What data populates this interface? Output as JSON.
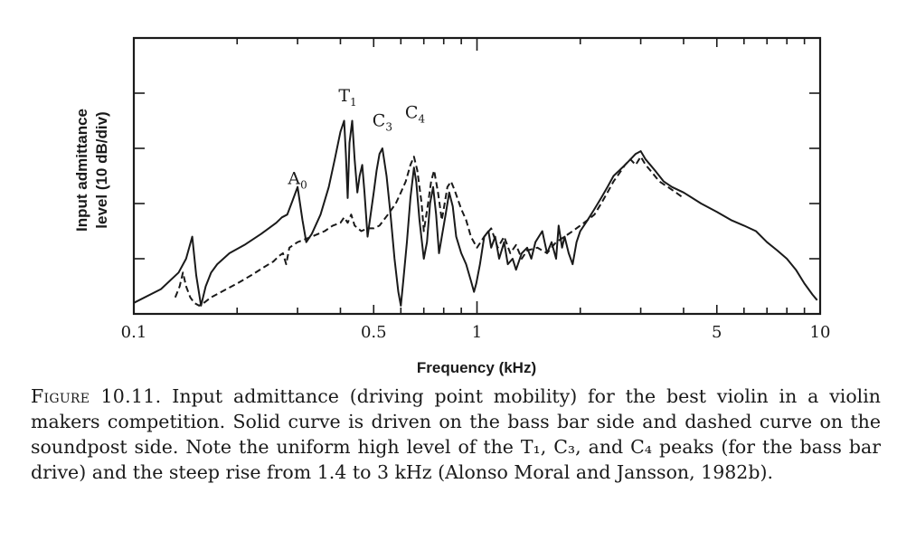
{
  "figure": {
    "caption_lead": "Figure 10.11.",
    "caption_text": " Input admittance (driving point mobility) for the best violin in a violin makers competition. Solid curve is driven on the bass bar side and dashed curve on the soundpost side. Note the uniform high level of the T₁, C₃, and C₄ peaks (for the bass bar drive) and the steep rise from 1.4 to 3 kHz (Alonso Moral and Jansson, 1982b)."
  },
  "chart_data": {
    "type": "line",
    "title": "",
    "xlabel": "Frequency (kHz)",
    "ylabel": "Input admittance level (10 dB/div)",
    "ylabel_lines": [
      "Input admittance",
      "level (10 dB/div)"
    ],
    "xscale": "log",
    "xlim": [
      0.1,
      10
    ],
    "ylim": [
      0,
      50
    ],
    "y_unit": "dB (relative)",
    "x_tick_labels": [
      {
        "value": 0.1,
        "label": "0.1"
      },
      {
        "value": 0.5,
        "label": "0.5"
      },
      {
        "value": 1,
        "label": "1"
      },
      {
        "value": 5,
        "label": "5"
      },
      {
        "value": 10,
        "label": "10"
      }
    ],
    "y_major_ticks": [
      10,
      20,
      30,
      40
    ],
    "grid": false,
    "legend": "none",
    "annotations": [
      {
        "text": "A",
        "sub": "0",
        "x": 0.3,
        "y": 23.5
      },
      {
        "text": "T",
        "sub": "1",
        "x": 0.42,
        "y": 38.5
      },
      {
        "text": "C",
        "sub": "3",
        "x": 0.53,
        "y": 34
      },
      {
        "text": "C",
        "sub": "4",
        "x": 0.66,
        "y": 35.5
      }
    ],
    "series": [
      {
        "name": "Solid curve (bass bar side)",
        "style": "solid",
        "points": [
          [
            0.1,
            2
          ],
          [
            0.12,
            4.5
          ],
          [
            0.135,
            7.5
          ],
          [
            0.142,
            10
          ],
          [
            0.148,
            14
          ],
          [
            0.152,
            7
          ],
          [
            0.157,
            1.5
          ],
          [
            0.162,
            5
          ],
          [
            0.168,
            7.5
          ],
          [
            0.175,
            9
          ],
          [
            0.19,
            11
          ],
          [
            0.21,
            12.5
          ],
          [
            0.235,
            14.5
          ],
          [
            0.26,
            16.5
          ],
          [
            0.27,
            17.5
          ],
          [
            0.28,
            18
          ],
          [
            0.29,
            20.5
          ],
          [
            0.3,
            23
          ],
          [
            0.31,
            17
          ],
          [
            0.318,
            13
          ],
          [
            0.33,
            14.5
          ],
          [
            0.35,
            18
          ],
          [
            0.37,
            23
          ],
          [
            0.385,
            28
          ],
          [
            0.4,
            33
          ],
          [
            0.41,
            35
          ],
          [
            0.415,
            29
          ],
          [
            0.42,
            21
          ],
          [
            0.425,
            31
          ],
          [
            0.433,
            35
          ],
          [
            0.44,
            28
          ],
          [
            0.448,
            22
          ],
          [
            0.455,
            25
          ],
          [
            0.463,
            27
          ],
          [
            0.47,
            22
          ],
          [
            0.48,
            14
          ],
          [
            0.49,
            18
          ],
          [
            0.5,
            22
          ],
          [
            0.51,
            26
          ],
          [
            0.52,
            29
          ],
          [
            0.53,
            30
          ],
          [
            0.545,
            25
          ],
          [
            0.56,
            18
          ],
          [
            0.575,
            10
          ],
          [
            0.59,
            4
          ],
          [
            0.6,
            1.5
          ],
          [
            0.61,
            6
          ],
          [
            0.625,
            13
          ],
          [
            0.64,
            21
          ],
          [
            0.655,
            26.5
          ],
          [
            0.665,
            24
          ],
          [
            0.68,
            17
          ],
          [
            0.7,
            10
          ],
          [
            0.715,
            13
          ],
          [
            0.73,
            20
          ],
          [
            0.745,
            23
          ],
          [
            0.76,
            18
          ],
          [
            0.775,
            11
          ],
          [
            0.79,
            14
          ],
          [
            0.81,
            18
          ],
          [
            0.83,
            22
          ],
          [
            0.85,
            19.5
          ],
          [
            0.87,
            14
          ],
          [
            0.9,
            11
          ],
          [
            0.93,
            9
          ],
          [
            0.96,
            6
          ],
          [
            0.98,
            4
          ],
          [
            0.995,
            5.5
          ],
          [
            1.02,
            9
          ],
          [
            1.05,
            14
          ],
          [
            1.08,
            15
          ],
          [
            1.1,
            12
          ],
          [
            1.13,
            14
          ],
          [
            1.16,
            10
          ],
          [
            1.2,
            13
          ],
          [
            1.23,
            9
          ],
          [
            1.27,
            10
          ],
          [
            1.3,
            8
          ],
          [
            1.35,
            11
          ],
          [
            1.4,
            12
          ],
          [
            1.44,
            10
          ],
          [
            1.48,
            13
          ],
          [
            1.55,
            15
          ],
          [
            1.6,
            11
          ],
          [
            1.65,
            13
          ],
          [
            1.7,
            10
          ],
          [
            1.73,
            16
          ],
          [
            1.77,
            12
          ],
          [
            1.8,
            14
          ],
          [
            1.85,
            11
          ],
          [
            1.9,
            9
          ],
          [
            1.95,
            13
          ],
          [
            2.0,
            15
          ],
          [
            2.1,
            17
          ],
          [
            2.2,
            19
          ],
          [
            2.3,
            21
          ],
          [
            2.4,
            23
          ],
          [
            2.5,
            25
          ],
          [
            2.6,
            26
          ],
          [
            2.7,
            27
          ],
          [
            2.8,
            28
          ],
          [
            2.9,
            29
          ],
          [
            3.0,
            29.5
          ],
          [
            3.1,
            28
          ],
          [
            3.2,
            27
          ],
          [
            3.3,
            26
          ],
          [
            3.5,
            24
          ],
          [
            3.7,
            23
          ],
          [
            4.0,
            22
          ],
          [
            4.5,
            20
          ],
          [
            5.0,
            18.5
          ],
          [
            5.5,
            17
          ],
          [
            6.0,
            16
          ],
          [
            6.5,
            15
          ],
          [
            7.0,
            13
          ],
          [
            7.5,
            11.5
          ],
          [
            8.0,
            10
          ],
          [
            8.5,
            8
          ],
          [
            9.0,
            5.5
          ],
          [
            9.5,
            3.5
          ],
          [
            9.8,
            2.5
          ]
        ]
      },
      {
        "name": "Dashed curve (soundpost side)",
        "style": "dashed",
        "points": [
          [
            0.132,
            3
          ],
          [
            0.136,
            5
          ],
          [
            0.139,
            7.5
          ],
          [
            0.142,
            5
          ],
          [
            0.146,
            3
          ],
          [
            0.15,
            2
          ],
          [
            0.155,
            1.5
          ],
          [
            0.16,
            2
          ],
          [
            0.168,
            3
          ],
          [
            0.18,
            4
          ],
          [
            0.2,
            5.5
          ],
          [
            0.22,
            7
          ],
          [
            0.24,
            8.5
          ],
          [
            0.255,
            9.5
          ],
          [
            0.265,
            10.5
          ],
          [
            0.272,
            11
          ],
          [
            0.278,
            9
          ],
          [
            0.284,
            12
          ],
          [
            0.3,
            13
          ],
          [
            0.33,
            14
          ],
          [
            0.36,
            15
          ],
          [
            0.38,
            16
          ],
          [
            0.4,
            16.5
          ],
          [
            0.41,
            17.5
          ],
          [
            0.42,
            16.5
          ],
          [
            0.43,
            18
          ],
          [
            0.44,
            16
          ],
          [
            0.46,
            15
          ],
          [
            0.48,
            15.5
          ],
          [
            0.5,
            15.5
          ],
          [
            0.52,
            16
          ],
          [
            0.55,
            18
          ],
          [
            0.58,
            20
          ],
          [
            0.6,
            22
          ],
          [
            0.62,
            24
          ],
          [
            0.64,
            27
          ],
          [
            0.655,
            28.5
          ],
          [
            0.67,
            26
          ],
          [
            0.69,
            20
          ],
          [
            0.7,
            15
          ],
          [
            0.72,
            20
          ],
          [
            0.735,
            24
          ],
          [
            0.75,
            26
          ],
          [
            0.77,
            22
          ],
          [
            0.79,
            17
          ],
          [
            0.8,
            19
          ],
          [
            0.82,
            23
          ],
          [
            0.84,
            24
          ],
          [
            0.86,
            22.5
          ],
          [
            0.9,
            19
          ],
          [
            0.93,
            17
          ],
          [
            0.96,
            14
          ],
          [
            1.0,
            12
          ],
          [
            1.05,
            14
          ],
          [
            1.1,
            15.5
          ],
          [
            1.15,
            12
          ],
          [
            1.2,
            14
          ],
          [
            1.25,
            11
          ],
          [
            1.3,
            12.5
          ],
          [
            1.35,
            10
          ],
          [
            1.4,
            11.5
          ],
          [
            1.5,
            12
          ],
          [
            1.6,
            11
          ],
          [
            1.7,
            13
          ],
          [
            1.8,
            14
          ],
          [
            1.9,
            15
          ],
          [
            2.0,
            16
          ],
          [
            2.1,
            17
          ],
          [
            2.2,
            18
          ],
          [
            2.3,
            20
          ],
          [
            2.4,
            22
          ],
          [
            2.5,
            24
          ],
          [
            2.6,
            25.5
          ],
          [
            2.7,
            27
          ],
          [
            2.8,
            28
          ],
          [
            2.9,
            27
          ],
          [
            3.0,
            28.5
          ],
          [
            3.1,
            27
          ],
          [
            3.2,
            26
          ],
          [
            3.4,
            24
          ],
          [
            3.6,
            23
          ],
          [
            3.8,
            22
          ],
          [
            4.0,
            21
          ]
        ]
      }
    ]
  }
}
